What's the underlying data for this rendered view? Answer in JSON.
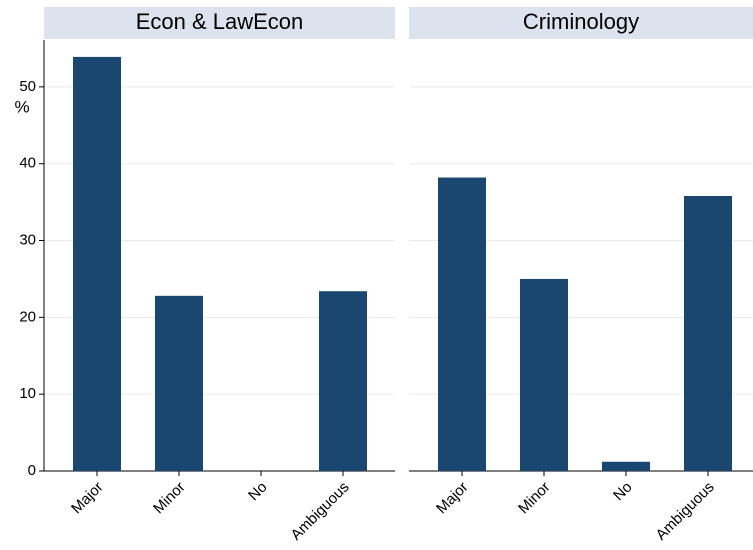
{
  "chart_data": [
    {
      "type": "bar",
      "title": "Econ & LawEcon",
      "ylabel": "%",
      "categories": [
        "Major",
        "Minor",
        "No",
        "Ambiguous"
      ],
      "values": [
        53.9,
        22.8,
        0,
        23.4
      ],
      "color": "#1a476f",
      "ylim": [
        0,
        56.1
      ],
      "yticks": [
        0,
        10,
        20,
        30,
        40,
        50
      ],
      "grid": true
    },
    {
      "type": "bar",
      "title": "Criminology",
      "categories": [
        "Major",
        "Minor",
        "No",
        "Ambiguous"
      ],
      "values": [
        38.2,
        25.0,
        1.2,
        35.8
      ],
      "color": "#1a476f",
      "ylim": [
        0,
        56.1
      ],
      "grid": true
    }
  ]
}
